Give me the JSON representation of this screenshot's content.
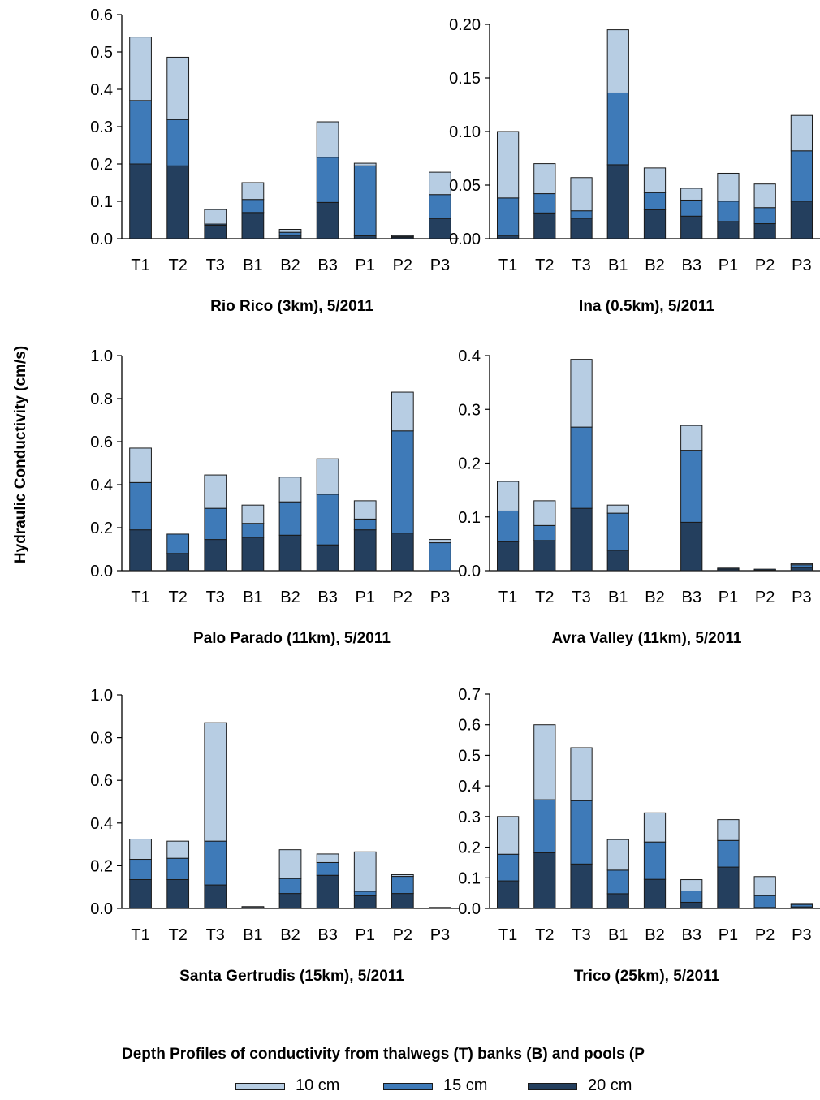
{
  "colors": {
    "10 cm": "#b7cde3",
    "15 cm": "#3e7ab8",
    "20 cm": "#243f5e",
    "outline": "#1a1a1a"
  },
  "ylabel": "Hydraulic Conductivity (cm/s)",
  "caption": "Depth Profiles of conductivity from thalwegs (T) banks (B) and pools (P",
  "legend": [
    "10 cm",
    "15 cm",
    "20 cm"
  ],
  "chart_data": [
    {
      "type": "bar",
      "stacked": true,
      "title": "Rio Rico (3km), 5/2011",
      "categories": [
        "T1",
        "T2",
        "T3",
        "B1",
        "B2",
        "B3",
        "P1",
        "P2",
        "P3"
      ],
      "ylim": [
        0,
        0.6
      ],
      "yticks": [
        "0.0",
        "0.1",
        "0.2",
        "0.3",
        "0.4",
        "0.5",
        "0.6"
      ],
      "series": [
        {
          "name": "20 cm",
          "values": [
            0.2,
            0.195,
            0.036,
            0.07,
            0.009,
            0.097,
            0.008,
            0.004,
            0.054
          ]
        },
        {
          "name": "15 cm",
          "values": [
            0.17,
            0.124,
            0.003,
            0.035,
            0.008,
            0.121,
            0.187,
            0.002,
            0.064
          ]
        },
        {
          "name": "10 cm",
          "values": [
            0.17,
            0.167,
            0.039,
            0.045,
            0.008,
            0.095,
            0.007,
            0.001,
            0.06
          ]
        }
      ]
    },
    {
      "type": "bar",
      "stacked": true,
      "title": "Ina (0.5km), 5/2011",
      "categories": [
        "T1",
        "T2",
        "T3",
        "B1",
        "B2",
        "B3",
        "P1",
        "P2",
        "P3"
      ],
      "ylim": [
        0,
        0.2
      ],
      "yticks": [
        "0.00",
        "0.05",
        "0.10",
        "0.15",
        "0.20"
      ],
      "series": [
        {
          "name": "20 cm",
          "values": [
            0.003,
            0.024,
            0.019,
            0.069,
            0.027,
            0.021,
            0.016,
            0.014,
            0.035
          ]
        },
        {
          "name": "15 cm",
          "values": [
            0.035,
            0.018,
            0.007,
            0.067,
            0.016,
            0.015,
            0.019,
            0.015,
            0.047
          ]
        },
        {
          "name": "10 cm",
          "values": [
            0.062,
            0.028,
            0.031,
            0.059,
            0.023,
            0.011,
            0.026,
            0.022,
            0.033
          ]
        }
      ]
    },
    {
      "type": "bar",
      "stacked": true,
      "title": "Palo Parado (11km), 5/2011",
      "categories": [
        "T1",
        "T2",
        "T3",
        "B1",
        "B2",
        "B3",
        "P1",
        "P2",
        "P3"
      ],
      "ylim": [
        0,
        1.0
      ],
      "yticks": [
        "0.0",
        "0.2",
        "0.4",
        "0.6",
        "0.8",
        "1.0"
      ],
      "series": [
        {
          "name": "20 cm",
          "values": [
            0.19,
            0.08,
            0.145,
            0.155,
            0.165,
            0.12,
            0.19,
            0.175,
            0.0
          ]
        },
        {
          "name": "15 cm",
          "values": [
            0.22,
            0.09,
            0.145,
            0.065,
            0.155,
            0.235,
            0.05,
            0.475,
            0.13
          ]
        },
        {
          "name": "10 cm",
          "values": [
            0.16,
            0.0,
            0.155,
            0.085,
            0.115,
            0.165,
            0.085,
            0.18,
            0.015
          ]
        }
      ]
    },
    {
      "type": "bar",
      "stacked": true,
      "title": "Avra Valley (11km), 5/2011",
      "categories": [
        "T1",
        "T2",
        "T3",
        "B1",
        "B2",
        "B3",
        "P1",
        "P2",
        "P3"
      ],
      "ylim": [
        0,
        0.4
      ],
      "yticks": [
        "0.0",
        "0.1",
        "0.2",
        "0.3",
        "0.4"
      ],
      "series": [
        {
          "name": "20 cm",
          "values": [
            0.054,
            0.056,
            0.116,
            0.038,
            0.0,
            0.09,
            0.003,
            0.001,
            0.006
          ]
        },
        {
          "name": "15 cm",
          "values": [
            0.057,
            0.028,
            0.151,
            0.069,
            0.0,
            0.134,
            0.001,
            0.001,
            0.005
          ]
        },
        {
          "name": "10 cm",
          "values": [
            0.055,
            0.046,
            0.126,
            0.015,
            0.0,
            0.046,
            0.0,
            0.0,
            0.002
          ]
        }
      ]
    },
    {
      "type": "bar",
      "stacked": true,
      "title": "Santa Gertrudis (15km), 5/2011",
      "categories": [
        "T1",
        "T2",
        "T3",
        "B1",
        "B2",
        "B3",
        "P1",
        "P2",
        "P3"
      ],
      "ylim": [
        0,
        1.0
      ],
      "yticks": [
        "0.0",
        "0.2",
        "0.4",
        "0.6",
        "0.8",
        "1.0"
      ],
      "series": [
        {
          "name": "20 cm",
          "values": [
            0.135,
            0.135,
            0.11,
            0.003,
            0.07,
            0.155,
            0.06,
            0.07,
            0.001
          ]
        },
        {
          "name": "15 cm",
          "values": [
            0.095,
            0.1,
            0.205,
            0.001,
            0.07,
            0.06,
            0.02,
            0.08,
            0.0
          ]
        },
        {
          "name": "10 cm",
          "values": [
            0.095,
            0.08,
            0.555,
            0.001,
            0.135,
            0.04,
            0.185,
            0.008,
            0.0
          ]
        }
      ]
    },
    {
      "type": "bar",
      "stacked": true,
      "title": "Trico (25km), 5/2011",
      "categories": [
        "T1",
        "T2",
        "T3",
        "B1",
        "B2",
        "B3",
        "P1",
        "P2",
        "P3"
      ],
      "ylim": [
        0,
        0.7
      ],
      "yticks": [
        "0.0",
        "0.1",
        "0.2",
        "0.3",
        "0.4",
        "0.5",
        "0.6",
        "0.7"
      ],
      "series": [
        {
          "name": "20 cm",
          "values": [
            0.09,
            0.182,
            0.145,
            0.048,
            0.095,
            0.02,
            0.135,
            0.003,
            0.005
          ]
        },
        {
          "name": "15 cm",
          "values": [
            0.087,
            0.173,
            0.207,
            0.077,
            0.122,
            0.037,
            0.087,
            0.039,
            0.008
          ]
        },
        {
          "name": "10 cm",
          "values": [
            0.123,
            0.245,
            0.173,
            0.1,
            0.095,
            0.037,
            0.068,
            0.062,
            0.002
          ]
        }
      ]
    }
  ]
}
